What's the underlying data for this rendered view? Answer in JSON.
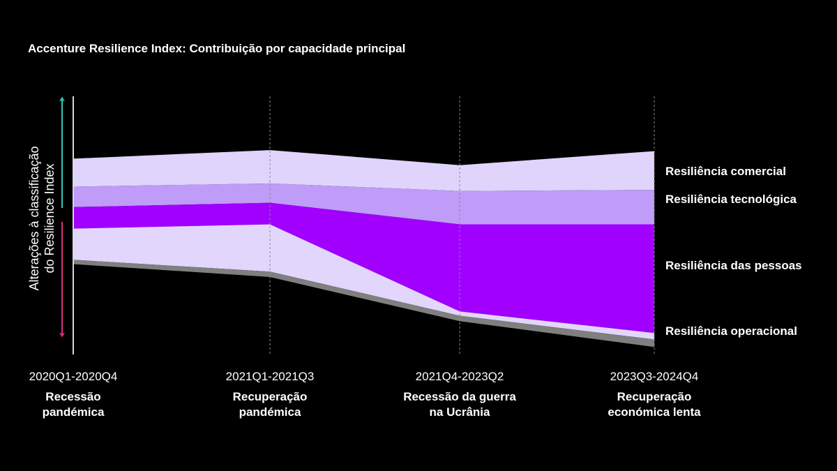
{
  "chart_data": {
    "type": "area",
    "title": "Accenture Resilience Index: Contribuição por capacidade principal",
    "ylabel": "Alterações à classificação do Resilience Index",
    "ylabel_lines": [
      "Alterações à classificação",
      "do Resilience Index"
    ],
    "categories": [
      {
        "range": "2020Q1-2020Q4",
        "name_lines": [
          "Recessão",
          "pandémica"
        ]
      },
      {
        "range": "2021Q1-2021Q3",
        "name_lines": [
          "Recuperação",
          "pandémica"
        ]
      },
      {
        "range": "2021Q4-2023Q2",
        "name_lines": [
          "Recessão da guerra",
          "na Ucrânia"
        ]
      },
      {
        "range": "2023Q3-2024Q4",
        "name_lines": [
          "Recuperação",
          "económica lenta"
        ]
      }
    ],
    "y_axis": {
      "min": -12,
      "max": 12,
      "baseline": 0
    },
    "boundaries": [
      [
        6.2,
        7.0,
        5.6,
        6.9
      ],
      [
        3.6,
        3.9,
        3.2,
        3.3
      ],
      [
        1.7,
        2.1,
        0.1,
        0.1
      ],
      [
        -0.3,
        0.1,
        -8.0,
        -10.0
      ],
      [
        -3.2,
        -4.3,
        -8.4,
        -10.6
      ],
      [
        -3.6,
        -4.8,
        -8.9,
        -11.3
      ]
    ],
    "series": [
      {
        "name": "Resiliência comercial",
        "color": "#e0d4fc"
      },
      {
        "name": "Resiliência tecnológica",
        "color": "#be9cf7"
      },
      {
        "name": "Resiliência das pessoas",
        "color": "#a100ff"
      },
      {
        "name": "Resiliência operacional",
        "color": "#e2d6fd"
      },
      {
        "name": "",
        "color": "#7f7f7f"
      }
    ],
    "series_labels": [
      "Resiliência comercial",
      "Resiliência tecnológica",
      "Resiliência das pessoas",
      "Resiliência operacional"
    ],
    "colors": {
      "arrow_up": "#35c9b8",
      "arrow_down": "#e0307a",
      "axis": "#d9d9d9",
      "gridline": "#8c8c8c"
    }
  }
}
